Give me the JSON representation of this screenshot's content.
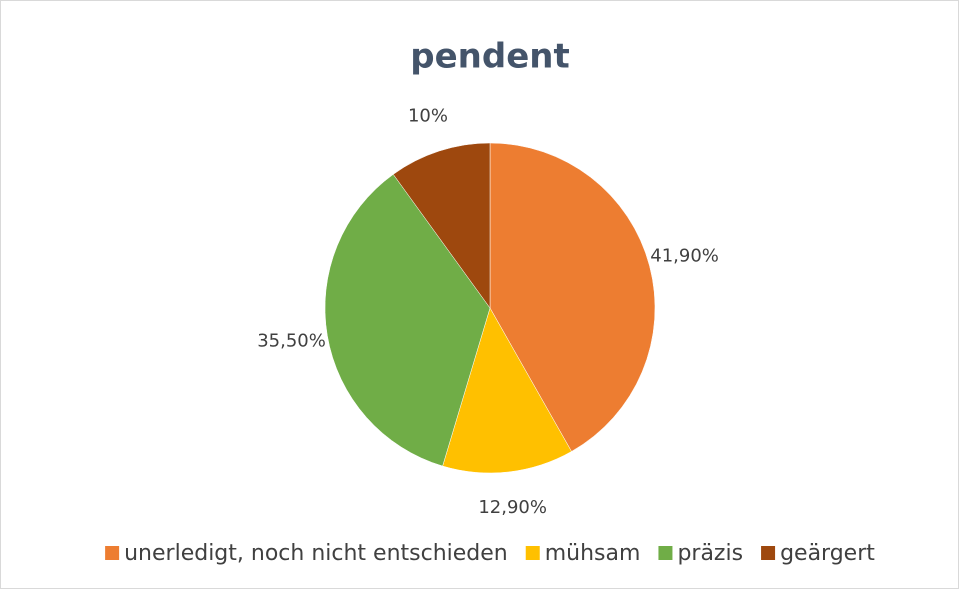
{
  "chart_data": {
    "type": "pie",
    "title": "pendent",
    "categories": [
      "unerledigt, noch nicht entschieden",
      "mühsam",
      "präzis",
      "geärgert"
    ],
    "values": [
      41.9,
      12.9,
      35.5,
      10
    ],
    "value_labels": [
      "41,90%",
      "12,90%",
      "35,50%",
      "10%"
    ],
    "colors": [
      "#ed7d31",
      "#ffc000",
      "#70ad47",
      "#9e480e"
    ],
    "legend": "bottom"
  }
}
